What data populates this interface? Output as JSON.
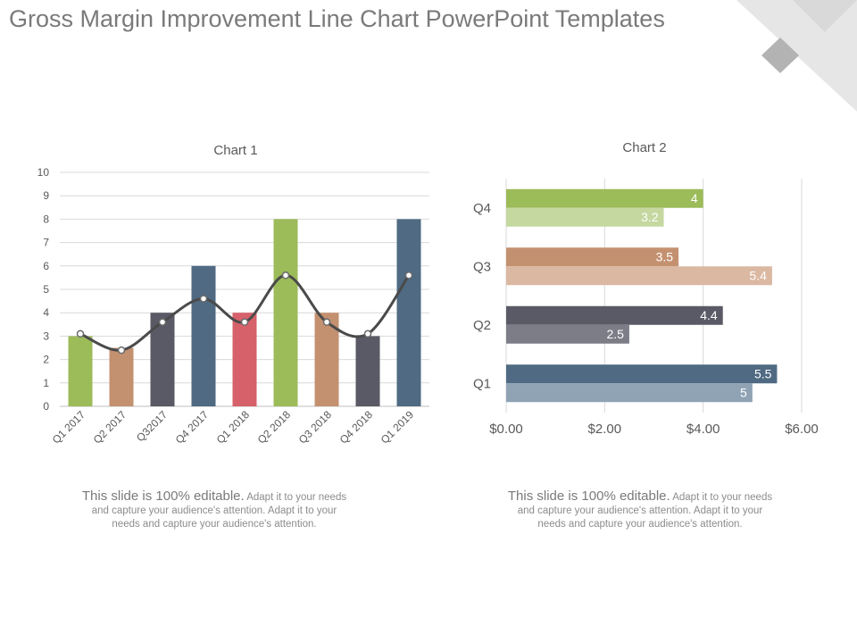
{
  "page": {
    "title": "Gross Margin Improvement Line Chart PowerPoint Templates"
  },
  "captions": [
    {
      "lead": "This slide is 100% editable.",
      "body": "Adapt it to your needs and capture your audience's attention. Adapt it to your needs and capture your audience's attention."
    },
    {
      "lead": "This slide is 100% editable.",
      "body": "Adapt it to your needs and capture your audience's attention. Adapt it to your needs and capture your audience's attention."
    }
  ],
  "colors": {
    "deco_light": "#e6e6e6",
    "deco_dark": "#b3b3b3"
  },
  "chart_data": [
    {
      "type": "bar",
      "title": "Chart 1",
      "categories": [
        "Q1 2017",
        "Q2 2017",
        "Q32017",
        "Q4 2017",
        "Q1 2018",
        "Q2 2018",
        "Q3 2018",
        "Q4 2018",
        "Q1 2019"
      ],
      "values": [
        3,
        2.5,
        4,
        6,
        4,
        8,
        4,
        3,
        8
      ],
      "bar_colors": [
        "#9cbb59",
        "#c49170",
        "#5a5a66",
        "#4f6a82",
        "#d6616b",
        "#9cbb59",
        "#c49170",
        "#5a5a66",
        "#4f6a82"
      ],
      "line_series": {
        "values": [
          3.1,
          2.4,
          3.6,
          4.6,
          3.6,
          5.6,
          3.6,
          3.1,
          5.6
        ],
        "color": "#4a4a4a"
      },
      "yticks": [
        "0",
        "1",
        "2",
        "3",
        "4",
        "5",
        "6",
        "7",
        "8",
        "9",
        "10"
      ],
      "ylim": [
        0,
        10
      ],
      "grid": true
    },
    {
      "type": "bar",
      "orientation": "horizontal",
      "title": "Chart 2",
      "categories": [
        "Q1",
        "Q2",
        "Q3",
        "Q4"
      ],
      "series": [
        {
          "values": [
            5.5,
            4.4,
            3.5,
            4
          ],
          "labels": [
            "5.5",
            "4.4",
            "3.5",
            "4"
          ],
          "colors": [
            "#4f6a82",
            "#5a5a66",
            "#c49170",
            "#9cbb59"
          ]
        },
        {
          "values": [
            5,
            2.5,
            5.4,
            3.2
          ],
          "labels": [
            "5",
            "2.5",
            "5.4",
            "3.2"
          ],
          "colors": [
            "#8fa3b5",
            "#7d7d88",
            "#dbb8a2",
            "#c4d8a0"
          ]
        }
      ],
      "xticks": [
        "$0.00",
        "$2.00",
        "$4.00",
        "$6.00"
      ],
      "xlim": [
        0,
        6
      ],
      "grid": true
    }
  ]
}
